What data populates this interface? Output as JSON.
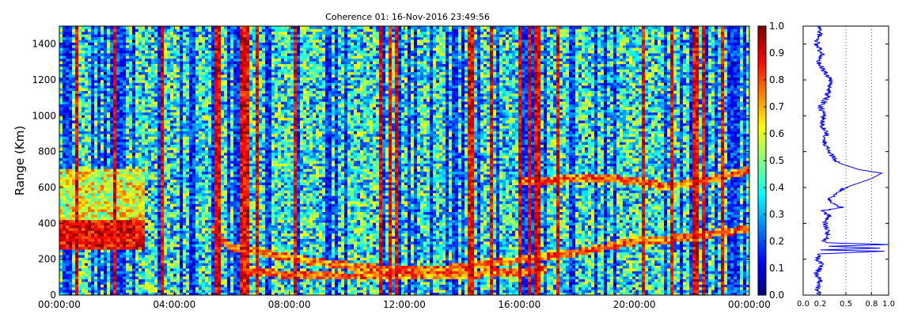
{
  "chart_data": [
    {
      "type": "heatmap",
      "title": "Coherence 01: 16-Nov-2016 23:49:56",
      "ylabel": "Range (Km)",
      "xlabel": "",
      "x_ticks": [
        "00:00:00",
        "04:00:00",
        "08:00:00",
        "12:00:00",
        "16:00:00",
        "20:00:00",
        "00:00:00"
      ],
      "x_range_hours": [
        0,
        24
      ],
      "y_ticks": [
        0,
        200,
        400,
        600,
        800,
        1000,
        1200,
        1400
      ],
      "ylim": [
        0,
        1500
      ],
      "colorbar": {
        "ticks": [
          "0.0",
          "0.1",
          "0.2",
          "0.3",
          "0.4",
          "0.5",
          "0.6",
          "0.7",
          "0.8",
          "0.9",
          "1.0"
        ],
        "range": [
          0,
          1
        ],
        "colormap": "jet"
      },
      "echo_traces_hours_km": [
        {
          "x": [
            0.0,
            1.0,
            2.0,
            3.0
          ],
          "y": [
            300,
            300,
            300,
            300
          ]
        },
        {
          "x": [
            5.3,
            6.0,
            7.0,
            8.0,
            9.0,
            10.0,
            11.0,
            12.0,
            13.0,
            14.0,
            15.0,
            16.0,
            17.0,
            18.0,
            19.0,
            20.0,
            21.0,
            22.0,
            23.0,
            24.0
          ],
          "y": [
            370,
            260,
            240,
            210,
            185,
            165,
            150,
            145,
            145,
            155,
            175,
            200,
            220,
            240,
            270,
            300,
            310,
            330,
            350,
            370
          ]
        },
        {
          "x": [
            6.5,
            8.0,
            10.0,
            12.0,
            14.0,
            16.0,
            17.0
          ],
          "y": [
            130,
            115,
            105,
            110,
            115,
            130,
            140
          ]
        },
        {
          "x": [
            16.0,
            17.0,
            18.0,
            19.0,
            20.0,
            21.0,
            22.0,
            23.0,
            24.0
          ],
          "y": [
            630,
            640,
            650,
            650,
            640,
            610,
            620,
            660,
            700
          ]
        }
      ],
      "grid": false
    },
    {
      "type": "line",
      "title": "",
      "xlabel": "",
      "ylabel": "",
      "x_ticks": [
        "0.0",
        "0.2",
        "0.5",
        "0.8",
        "1.0"
      ],
      "xlim": [
        0,
        1
      ],
      "ylim": [
        0,
        1500
      ],
      "grid_x_dotted": [
        0.5,
        0.8
      ],
      "series": [
        {
          "color": "#0000ff",
          "points_profile_value_range_km": [
            [
              0.18,
              0
            ],
            [
              0.16,
              40
            ],
            [
              0.2,
              80
            ],
            [
              0.15,
              120
            ],
            [
              0.22,
              160
            ],
            [
              0.17,
              200
            ],
            [
              0.2,
              230
            ],
            [
              0.95,
              245
            ],
            [
              0.2,
              252
            ],
            [
              0.9,
              262
            ],
            [
              0.3,
              272
            ],
            [
              1.0,
              282
            ],
            [
              0.25,
              292
            ],
            [
              0.27,
              320
            ],
            [
              0.3,
              360
            ],
            [
              0.25,
              400
            ],
            [
              0.3,
              440
            ],
            [
              0.22,
              470
            ],
            [
              0.45,
              490
            ],
            [
              0.3,
              520
            ],
            [
              0.35,
              560
            ],
            [
              0.5,
              600
            ],
            [
              0.8,
              650
            ],
            [
              0.92,
              680
            ],
            [
              0.65,
              700
            ],
            [
              0.4,
              740
            ],
            [
              0.3,
              800
            ],
            [
              0.25,
              850
            ],
            [
              0.27,
              900
            ],
            [
              0.22,
              950
            ],
            [
              0.24,
              1000
            ],
            [
              0.2,
              1050
            ],
            [
              0.28,
              1100
            ],
            [
              0.3,
              1150
            ],
            [
              0.33,
              1200
            ],
            [
              0.25,
              1250
            ],
            [
              0.18,
              1300
            ],
            [
              0.22,
              1350
            ],
            [
              0.15,
              1400
            ],
            [
              0.2,
              1450
            ],
            [
              0.18,
              1500
            ]
          ]
        }
      ]
    }
  ]
}
